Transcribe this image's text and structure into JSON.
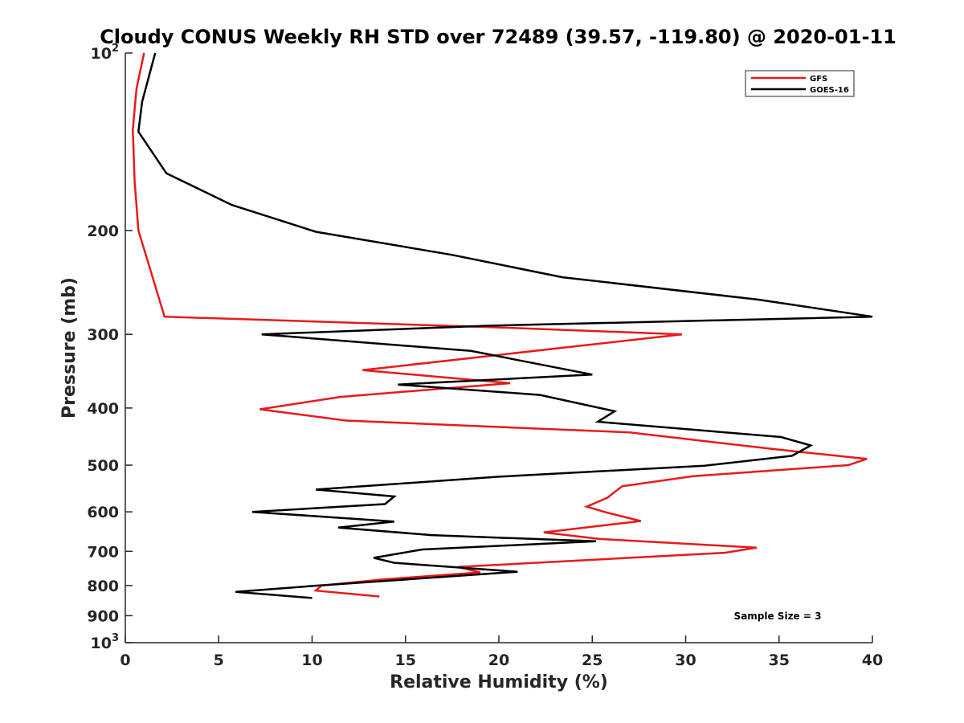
{
  "chart_data": {
    "type": "line",
    "title": "Cloudy CONUS Weekly RH STD over 72489 (39.57, -119.80) @ 2020-01-11",
    "xlabel": "Relative Humidity (%)",
    "ylabel": "Pressure (mb)",
    "xlim": [
      0,
      40
    ],
    "ylim": [
      100,
      1000
    ],
    "y_scale": "log",
    "y_reversed": true,
    "grid": false,
    "legend_position": "top-right",
    "x_ticks": [
      "0",
      "5",
      "10",
      "15",
      "20",
      "25",
      "30",
      "35",
      "40"
    ],
    "y_ticks": [
      {
        "value": 100,
        "label": "10",
        "sup": "2"
      },
      {
        "value": 200,
        "label": "200",
        "sup": ""
      },
      {
        "value": 300,
        "label": "300",
        "sup": ""
      },
      {
        "value": 400,
        "label": "400",
        "sup": ""
      },
      {
        "value": 500,
        "label": "500",
        "sup": ""
      },
      {
        "value": 600,
        "label": "600",
        "sup": ""
      },
      {
        "value": 700,
        "label": "700",
        "sup": ""
      },
      {
        "value": 800,
        "label": "800",
        "sup": ""
      },
      {
        "value": 900,
        "label": "900",
        "sup": ""
      },
      {
        "value": 1000,
        "label": "10",
        "sup": "3"
      }
    ],
    "series": [
      {
        "name": "GFS",
        "color": "#e8191a",
        "points": [
          [
            1.0,
            100
          ],
          [
            0.6,
            115
          ],
          [
            0.4,
            135
          ],
          [
            0.5,
            165
          ],
          [
            0.7,
            200
          ],
          [
            1.0,
            215
          ],
          [
            2.1,
            280
          ],
          [
            20.0,
            292
          ],
          [
            29.8,
            300
          ],
          [
            12.7,
            345
          ],
          [
            20.6,
            363
          ],
          [
            11.5,
            383
          ],
          [
            7.2,
            402
          ],
          [
            11.8,
            420
          ],
          [
            27.0,
            440
          ],
          [
            34.8,
            470
          ],
          [
            39.7,
            488
          ],
          [
            38.7,
            500
          ],
          [
            30.4,
            522
          ],
          [
            26.6,
            543
          ],
          [
            25.8,
            568
          ],
          [
            24.7,
            588
          ],
          [
            25.8,
            602
          ],
          [
            27.6,
            622
          ],
          [
            22.4,
            650
          ],
          [
            25.4,
            667
          ],
          [
            33.8,
            690
          ],
          [
            32.1,
            704
          ],
          [
            17.8,
            744
          ],
          [
            19.0,
            760
          ],
          [
            13.8,
            781
          ],
          [
            10.5,
            800
          ],
          [
            10.2,
            816
          ],
          [
            13.6,
            835
          ]
        ]
      },
      {
        "name": "GOES-16",
        "color": "#000000",
        "points": [
          [
            1.6,
            100
          ],
          [
            0.9,
            121
          ],
          [
            0.7,
            136
          ],
          [
            2.2,
            160
          ],
          [
            5.7,
            181
          ],
          [
            10.2,
            201
          ],
          [
            17.5,
            220
          ],
          [
            23.4,
            240
          ],
          [
            33.9,
            262
          ],
          [
            40.0,
            280
          ],
          [
            19.5,
            290
          ],
          [
            7.3,
            300
          ],
          [
            18.5,
            320
          ],
          [
            25.0,
            351
          ],
          [
            14.6,
            365
          ],
          [
            22.2,
            380
          ],
          [
            26.2,
            405
          ],
          [
            25.3,
            422
          ],
          [
            35.1,
            448
          ],
          [
            36.7,
            463
          ],
          [
            35.7,
            482
          ],
          [
            31.0,
            501
          ],
          [
            20.0,
            523
          ],
          [
            10.2,
            550
          ],
          [
            14.4,
            565
          ],
          [
            13.9,
            582
          ],
          [
            6.8,
            600
          ],
          [
            14.4,
            623
          ],
          [
            11.4,
            638
          ],
          [
            16.4,
            657
          ],
          [
            25.2,
            673
          ],
          [
            15.9,
            695
          ],
          [
            13.3,
            718
          ],
          [
            14.4,
            732
          ],
          [
            21.0,
            758
          ],
          [
            10.1,
            801
          ],
          [
            5.9,
            820
          ],
          [
            10.0,
            840
          ]
        ]
      }
    ],
    "annotations": [
      "Sample Size = 3"
    ]
  }
}
